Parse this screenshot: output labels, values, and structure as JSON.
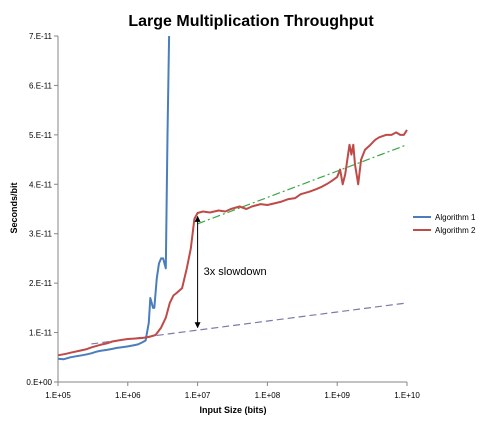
{
  "chart_data": {
    "type": "line",
    "title": "Large Multiplication Throughput",
    "xlabel": "Input Size (bits)",
    "ylabel": "Seconds/bit",
    "x_scale": "log",
    "xlim": [
      100000,
      10000000000
    ],
    "ylim": [
      0,
      7e-11
    ],
    "x_tick_values": [
      100000,
      1000000,
      10000000,
      100000000,
      1000000000,
      10000000000
    ],
    "x_tick_labels": [
      "1.E+05",
      "1.E+06",
      "1.E+07",
      "1.E+08",
      "1.E+09",
      "1.E+10"
    ],
    "y_tick_values": [
      0,
      1e-11,
      2e-11,
      3e-11,
      4e-11,
      5e-11,
      6e-11,
      7e-11
    ],
    "y_tick_labels": [
      "0.E+00",
      "1.E-11",
      "2.E-11",
      "3.E-11",
      "4.E-11",
      "5.E-11",
      "6.E-11",
      "7.E-11"
    ],
    "grid": false,
    "legend_position": "right",
    "series": [
      {
        "name": "Algorithm 1",
        "color": "#4a7ebb",
        "x": [
          100000,
          120000,
          150000,
          180000,
          220000,
          260000,
          300000,
          350000,
          400000,
          500000,
          600000,
          700000,
          800000,
          900000,
          1000000,
          1200000,
          1400000,
          1600000,
          1800000,
          2000000,
          2100000,
          2200000,
          2300000,
          2400000,
          2600000,
          2800000,
          3000000,
          3200000,
          3500000,
          3700000,
          3900000
        ],
        "y": [
          4.7e-12,
          4.6e-12,
          5e-12,
          5.2e-12,
          5.4e-12,
          5.6e-12,
          5.8e-12,
          6.1e-12,
          6.3e-12,
          6.5e-12,
          6.7e-12,
          6.9e-12,
          7e-12,
          7.1e-12,
          7.2e-12,
          7.4e-12,
          7.6e-12,
          8e-12,
          8.4e-12,
          1.2e-11,
          1.7e-11,
          1.6e-11,
          1.5e-11,
          1.5e-11,
          2.1e-11,
          2.4e-11,
          2.5e-11,
          2.5e-11,
          2.3e-11,
          5e-11,
          7e-11
        ]
      },
      {
        "name": "Algorithm 2",
        "color": "#be4b48",
        "x": [
          100000,
          130000,
          160000,
          200000,
          250000,
          300000,
          400000,
          500000,
          600000,
          800000,
          1000000,
          1300000,
          1600000,
          2000000,
          2500000,
          3000000,
          3500000,
          4000000,
          4500000,
          5000000,
          6000000,
          7000000,
          8000000,
          9000000,
          10000000,
          12000000,
          15000000,
          20000000,
          25000000,
          30000000,
          40000000,
          50000000,
          60000000,
          80000000,
          100000000,
          130000000,
          160000000,
          200000000,
          250000000,
          300000000,
          400000000,
          500000000,
          600000000,
          700000000,
          800000000,
          900000000,
          1000000000,
          1100000000,
          1200000000,
          1300000000,
          1500000000,
          1600000000,
          1700000000,
          1800000000,
          2000000000,
          2200000000,
          2500000000,
          3000000000,
          3500000000,
          4000000000,
          5000000000,
          6000000000,
          7000000000,
          8000000000,
          9000000000,
          10000000000
        ],
        "y": [
          5.4e-12,
          5.7e-12,
          6e-12,
          6.3e-12,
          6.6e-12,
          7e-12,
          7.5e-12,
          7.8e-12,
          8.2e-12,
          8.5e-12,
          8.7e-12,
          8.8e-12,
          8.9e-12,
          9.1e-12,
          9.5e-12,
          1.1e-11,
          1.3e-11,
          1.6e-11,
          1.75e-11,
          1.8e-11,
          1.9e-11,
          2.3e-11,
          2.7e-11,
          3.3e-11,
          3.42e-11,
          3.45e-11,
          3.43e-11,
          3.47e-11,
          3.45e-11,
          3.5e-11,
          3.55e-11,
          3.5e-11,
          3.55e-11,
          3.6e-11,
          3.58e-11,
          3.62e-11,
          3.65e-11,
          3.7e-11,
          3.72e-11,
          3.8e-11,
          3.85e-11,
          3.9e-11,
          3.95e-11,
          4e-11,
          4.05e-11,
          4.1e-11,
          4.15e-11,
          4.3e-11,
          4e-11,
          4.2e-11,
          4.8e-11,
          4.6e-11,
          4.8e-11,
          4.4e-11,
          4e-11,
          4.5e-11,
          4.7e-11,
          4.8e-11,
          4.9e-11,
          4.95e-11,
          5e-11,
          5e-11,
          5.05e-11,
          5e-11,
          5e-11,
          5.1e-11
        ]
      }
    ],
    "trendlines": [
      {
        "style": "dash",
        "color": "#7b7ba8",
        "x": [
          300000,
          10000000000
        ],
        "y": [
          7.7e-12,
          1.6e-11
        ]
      },
      {
        "style": "dash-dot",
        "color": "#3aa845",
        "x": [
          10000000,
          10000000000
        ],
        "y": [
          3.2e-11,
          4.8e-11
        ]
      }
    ],
    "annotation": {
      "text": "3x slowdown",
      "arrow_x": 10000000,
      "arrow_y": [
        3.35e-11,
        1.1e-11
      ]
    }
  }
}
